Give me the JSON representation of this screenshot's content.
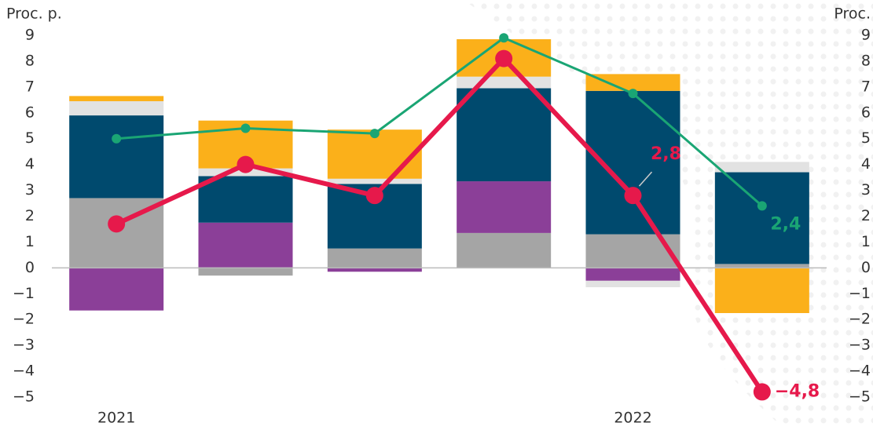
{
  "chart_data": {
    "type": "bar",
    "y_label": "Proc. p.",
    "y2_label": "Proc.",
    "categories": [
      "2021",
      null,
      null,
      null,
      "2022",
      null
    ],
    "series": [
      {
        "color": "#a5a5a5",
        "values": [
          2.7,
          -0.3,
          0.75,
          1.35,
          1.3,
          0.15
        ]
      },
      {
        "color": "#8b3f98",
        "values": [
          -1.65,
          1.75,
          -0.15,
          2.0,
          -0.5,
          0
        ]
      },
      {
        "color": "#004a6e",
        "values": [
          3.2,
          1.8,
          2.5,
          3.6,
          5.55,
          3.55
        ]
      },
      {
        "color": "#e2e2e2",
        "values": [
          0.55,
          0.3,
          0.2,
          0.45,
          -0.25,
          0.4
        ]
      },
      {
        "color": "#fbb01a",
        "values": [
          0.2,
          1.85,
          1.9,
          1.45,
          0.65,
          -1.75
        ]
      }
    ],
    "lines": [
      {
        "color": "#1aa574",
        "axis": "y2",
        "values": [
          5.0,
          5.4,
          5.2,
          8.9,
          6.75,
          2.4
        ],
        "value_labels": [
          null,
          null,
          null,
          null,
          null,
          "2,4"
        ]
      },
      {
        "color": "#e6194b",
        "axis": "y2",
        "values": [
          1.7,
          4.0,
          2.8,
          8.1,
          2.8,
          -4.8
        ],
        "value_labels": [
          null,
          null,
          null,
          null,
          "2,8",
          "−4,8"
        ]
      }
    ],
    "ylim": [
      -5,
      9
    ],
    "yticks": [
      {
        "value": -5,
        "label": "−5"
      },
      {
        "value": -4,
        "label": "−4"
      },
      {
        "value": -3,
        "label": "−3"
      },
      {
        "value": -2,
        "label": "−2"
      },
      {
        "value": -1,
        "label": "−1"
      },
      0,
      1,
      2,
      3,
      4,
      5,
      6,
      7,
      8,
      9
    ],
    "y2lim": [
      -5,
      9
    ],
    "y2ticks": [
      {
        "value": -5,
        "label": "−5"
      },
      {
        "value": -4,
        "label": "−4"
      },
      {
        "value": -3,
        "label": "−3"
      },
      {
        "value": -2,
        "label": "−2"
      },
      {
        "value": -1,
        "label": "−1"
      },
      0,
      1,
      2,
      3,
      4,
      5,
      6,
      7,
      8,
      9
    ]
  }
}
